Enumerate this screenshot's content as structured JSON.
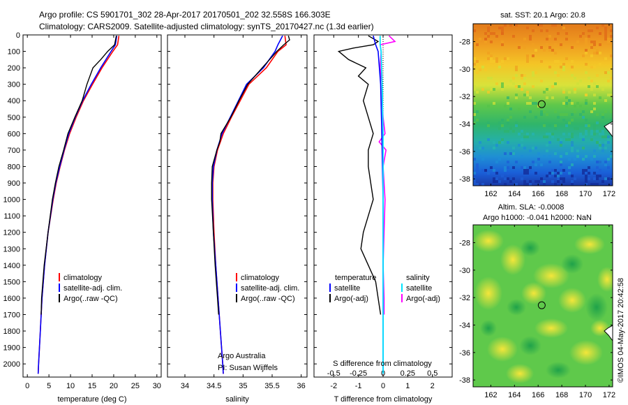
{
  "header": {
    "line1": "Argo profile: CS 5901701_302 28-Apr-2017 20170501_202 32.558S 166.303E",
    "line2": "Climatology: CARS2009. Satellite-adjusted climatology: synTS_20170427.nc (1.3d earlier)"
  },
  "colors": {
    "climatology": "#ff0000",
    "satellite": "#0000ff",
    "argo": "#000000",
    "sal_satellite": "#00e5ff",
    "sal_argo": "#ff00ff"
  },
  "chart_data": [
    {
      "type": "line",
      "name": "temperature-profile",
      "xlabel": "temperature (deg C)",
      "ylabel": "",
      "xlim": [
        -1,
        31
      ],
      "ylim": [
        2080,
        0
      ],
      "xticks": [
        0,
        5,
        10,
        15,
        20,
        25,
        30
      ],
      "yticks": [
        0,
        100,
        200,
        300,
        400,
        500,
        600,
        700,
        800,
        900,
        1000,
        1100,
        1200,
        1300,
        1400,
        1500,
        1600,
        1700,
        1800,
        1900,
        2000
      ],
      "legend": [
        "climatology",
        "satellite-adj. clim.",
        "Argo(..raw -QC)"
      ],
      "series": [
        {
          "name": "climatology",
          "depth": [
            5,
            60,
            100,
            200,
            300,
            400,
            500,
            600,
            700,
            800,
            900,
            1000,
            1200,
            1400,
            1600,
            1800,
            2000,
            2060
          ],
          "values": [
            21.2,
            20.9,
            19.8,
            17.3,
            15.1,
            13.0,
            11.3,
            9.8,
            8.6,
            7.6,
            6.7,
            6.0,
            4.8,
            4.0,
            3.4,
            3.0,
            2.6,
            2.5
          ]
        },
        {
          "name": "satellite-adj. clim.",
          "depth": [
            5,
            60,
            100,
            200,
            300,
            400,
            500,
            600,
            700,
            800,
            900,
            1000,
            1200,
            1400,
            1600,
            1800,
            2000,
            2060
          ],
          "values": [
            20.7,
            20.4,
            19.4,
            17.0,
            14.8,
            12.8,
            11.1,
            9.6,
            8.5,
            7.5,
            6.6,
            5.9,
            4.8,
            4.0,
            3.4,
            3.0,
            2.6,
            2.5
          ]
        },
        {
          "name": "Argo(..raw -QC)",
          "depth": [
            5,
            60,
            100,
            150,
            200,
            300,
            400,
            500,
            600,
            700,
            800,
            900,
            1000,
            1200,
            1400,
            1600,
            1700
          ],
          "values": [
            20.6,
            20.2,
            18.6,
            17.0,
            15.2,
            13.8,
            12.7,
            11.0,
            9.4,
            8.4,
            7.3,
            6.5,
            5.8,
            4.8,
            3.9,
            3.3,
            3.2
          ]
        }
      ]
    },
    {
      "type": "line",
      "name": "salinity-profile",
      "xlabel": "salinity",
      "xlim": [
        33.7,
        36.1
      ],
      "ylim": [
        2080,
        0
      ],
      "xticks": [
        34,
        34.5,
        35,
        35.5,
        36
      ],
      "legend": [
        "climatology",
        "satellite-adj. clim.",
        "Argo(..raw -QC)"
      ],
      "annotations": [
        "Argo Australia",
        "PI: Susan Wijffels"
      ],
      "series": [
        {
          "name": "climatology",
          "depth": [
            5,
            60,
            100,
            200,
            300,
            400,
            500,
            600,
            700,
            800,
            900,
            1000,
            1200,
            1400,
            1600,
            1800,
            2000,
            2060
          ],
          "values": [
            35.72,
            35.74,
            35.6,
            35.4,
            35.1,
            34.95,
            34.8,
            34.66,
            34.56,
            34.5,
            34.48,
            34.48,
            34.5,
            34.53,
            34.57,
            34.61,
            34.65,
            34.66
          ]
        },
        {
          "name": "satellite-adj. clim.",
          "depth": [
            5,
            60,
            100,
            200,
            300,
            400,
            500,
            600,
            700,
            800,
            900,
            1000,
            1200,
            1400,
            1600,
            1800,
            2000,
            2060
          ],
          "values": [
            35.68,
            35.6,
            35.55,
            35.35,
            35.06,
            34.92,
            34.78,
            34.64,
            34.55,
            34.49,
            34.47,
            34.47,
            34.49,
            34.53,
            34.57,
            34.61,
            34.65,
            34.66
          ]
        },
        {
          "name": "Argo(..raw -QC)",
          "depth": [
            5,
            30,
            60,
            100,
            200,
            300,
            400,
            500,
            600,
            650,
            700,
            800,
            900,
            1000,
            1200,
            1400,
            1600,
            1700
          ],
          "values": [
            35.78,
            35.8,
            35.7,
            35.58,
            35.33,
            35.08,
            34.93,
            34.79,
            34.62,
            34.6,
            34.55,
            34.47,
            34.46,
            34.46,
            34.49,
            34.52,
            34.56,
            34.58
          ]
        }
      ]
    },
    {
      "type": "line",
      "name": "difference-profile",
      "xlabel": "T difference from climatology",
      "xlabel_top": "S difference from climatology",
      "xlim": [
        -2.8,
        2.8
      ],
      "ylim": [
        2080,
        0
      ],
      "xticks": [
        -2,
        -1,
        0,
        1,
        2
      ],
      "sticks": [
        -0.5,
        -0.25,
        0,
        0.25,
        0.5
      ],
      "legend_temperature": [
        "temperature",
        "satellite",
        "Argo(-adj)"
      ],
      "legend_salinity": [
        "salinity",
        "satellite",
        "Argo(-adj)"
      ],
      "series": [
        {
          "name": "temperature satellite",
          "depth": [
            5,
            60,
            100,
            300,
            600,
            1000,
            1400,
            1800,
            2060
          ],
          "values": [
            -0.4,
            -0.3,
            -0.2,
            -0.1,
            -0.05,
            0,
            0,
            0,
            0
          ]
        },
        {
          "name": "temperature Argo(-adj)",
          "depth": [
            5,
            40,
            60,
            80,
            100,
            150,
            200,
            250,
            300,
            400,
            500,
            600,
            700,
            800,
            900,
            1000,
            1100,
            1200,
            1300,
            1400,
            1500,
            1600,
            1700
          ],
          "values": [
            -0.6,
            -0.2,
            -0.4,
            -1.2,
            -1.8,
            -1.4,
            -0.7,
            -1.0,
            -0.6,
            -0.8,
            -0.6,
            -0.4,
            -0.6,
            -0.6,
            -0.5,
            -0.4,
            -0.6,
            -0.8,
            -0.9,
            -0.6,
            -0.3,
            -0.2,
            -0.1
          ]
        },
        {
          "name": "salinity satellite",
          "depth": [
            5,
            60,
            100,
            300,
            600,
            1000,
            1400,
            1800,
            2060
          ],
          "values": [
            -0.03,
            -0.03,
            -0.02,
            -0.01,
            0,
            0,
            0,
            0,
            0
          ]
        },
        {
          "name": "salinity Argo(-adj)",
          "depth": [
            5,
            40,
            60,
            100,
            200,
            300,
            400,
            500,
            600,
            650,
            700,
            800,
            900,
            1000,
            1200,
            1400,
            1600,
            1700
          ],
          "values": [
            0.06,
            0.12,
            -0.03,
            -0.02,
            -0.03,
            -0.01,
            -0.01,
            0.0,
            0.02,
            -0.04,
            0.03,
            0.0,
            0.01,
            0.02,
            0.01,
            0.0,
            0.01,
            0.01
          ]
        }
      ]
    },
    {
      "type": "heatmap",
      "name": "sst-map",
      "title": "sat. SST: 20.1  Argo: 20.8",
      "xlim": [
        160.5,
        172.3
      ],
      "ylim": [
        -38.5,
        -26.7
      ],
      "xticks": [
        162,
        164,
        166,
        168,
        170,
        172
      ],
      "yticks": [
        -28,
        -30,
        -32,
        -34,
        -36,
        -38
      ],
      "argo_position": [
        166.303,
        -32.558
      ]
    },
    {
      "type": "heatmap",
      "name": "sla-map",
      "title": "Altim. SLA: -0.0008",
      "subtitle": "Argo h1000: -0.041 h2000: NaN",
      "xlim": [
        160.5,
        172.3
      ],
      "ylim": [
        -38.5,
        -26.7
      ],
      "xticks": [
        162,
        164,
        166,
        168,
        170,
        172
      ],
      "yticks": [
        -28,
        -30,
        -32,
        -34,
        -36,
        -38
      ],
      "argo_position": [
        166.303,
        -32.558
      ]
    }
  ],
  "footer": {
    "stamp": "©IMOS 04-May-2017 20:42:58"
  }
}
